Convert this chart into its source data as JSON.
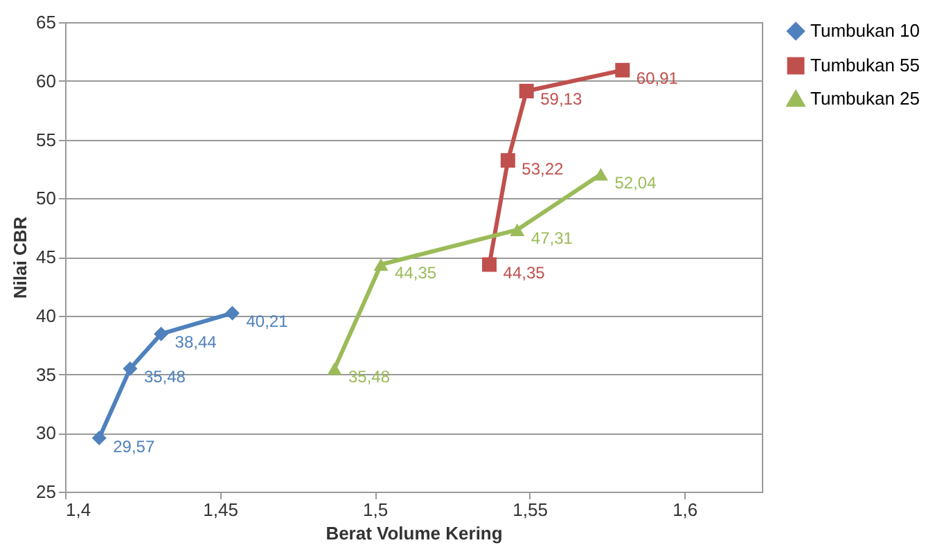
{
  "chart_data": {
    "type": "line",
    "xlabel": "Berat Volume Kering",
    "ylabel": "Nilai CBR",
    "xlim": [
      1.4,
      1.625
    ],
    "xticks": [
      {
        "value": 1.4,
        "label": "1,4"
      },
      {
        "value": 1.45,
        "label": "1,45"
      },
      {
        "value": 1.5,
        "label": "1,5"
      },
      {
        "value": 1.55,
        "label": "1,55"
      },
      {
        "value": 1.6,
        "label": "1,6"
      }
    ],
    "ylim": [
      25,
      65
    ],
    "yticks": [
      25,
      30,
      35,
      40,
      45,
      50,
      55,
      60,
      65
    ],
    "grid": "y",
    "legend": "right",
    "series": [
      {
        "name": "Tumbukan 10",
        "color": "#4f81bd",
        "marker": "diamond",
        "x": [
          1.411,
          1.421,
          1.431,
          1.454
        ],
        "values": [
          29.57,
          35.48,
          38.44,
          40.21
        ],
        "value_labels": [
          "29,57",
          "35,48",
          "38,44",
          "40,21"
        ]
      },
      {
        "name": "Tumbukan 55",
        "color": "#c0504d",
        "marker": "square",
        "x": [
          1.537,
          1.543,
          1.549,
          1.58
        ],
        "values": [
          44.35,
          53.22,
          59.13,
          60.91
        ],
        "value_labels": [
          "44,35",
          "53,22",
          "59,13",
          "60,91"
        ]
      },
      {
        "name": "Tumbukan 25",
        "color": "#9bbb59",
        "marker": "triangle",
        "x": [
          1.487,
          1.502,
          1.546,
          1.573
        ],
        "values": [
          35.48,
          44.35,
          47.31,
          52.04
        ],
        "value_labels": [
          "35,48",
          "44,35",
          "47,31",
          "52,04"
        ]
      }
    ]
  }
}
